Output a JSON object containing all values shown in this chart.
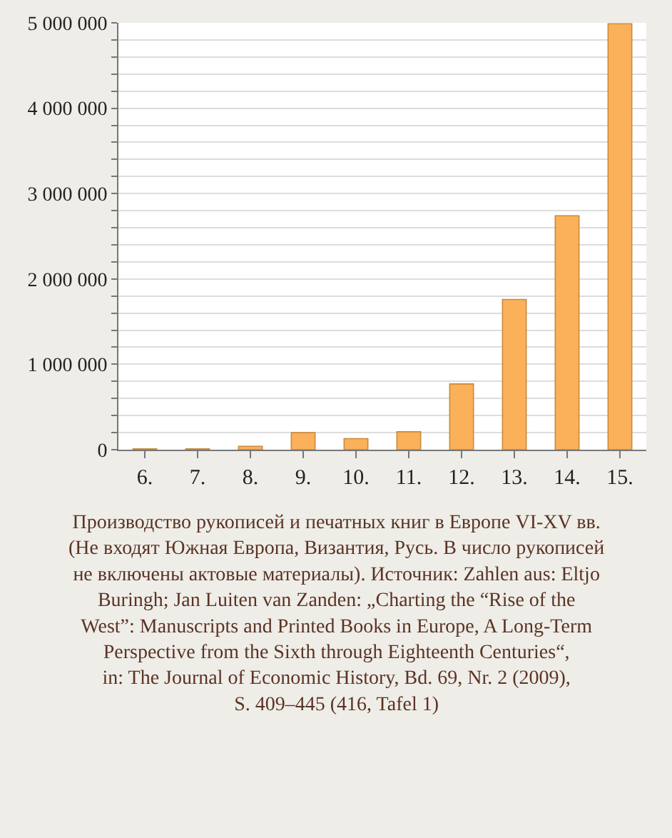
{
  "chart_data": {
    "type": "bar",
    "categories": [
      "6.",
      "7.",
      "8.",
      "9.",
      "10.",
      "11.",
      "12.",
      "13.",
      "14.",
      "15."
    ],
    "values": [
      10000,
      10000,
      40000,
      200000,
      130000,
      210000,
      770000,
      1760000,
      2740000,
      4990000
    ],
    "color": "#fbb05a",
    "ylim": [
      0,
      5000000
    ],
    "yticks": [
      {
        "value": 0,
        "label": "0"
      },
      {
        "value": 200000,
        "label": null
      },
      {
        "value": 400000,
        "label": null
      },
      {
        "value": 600000,
        "label": null
      },
      {
        "value": 800000,
        "label": null
      },
      {
        "value": 1000000,
        "label": "1 000 000"
      },
      {
        "value": 1200000,
        "label": null
      },
      {
        "value": 1400000,
        "label": null
      },
      {
        "value": 1600000,
        "label": null
      },
      {
        "value": 1800000,
        "label": null
      },
      {
        "value": 2000000,
        "label": "2 000 000"
      },
      {
        "value": 2200000,
        "label": null
      },
      {
        "value": 2400000,
        "label": null
      },
      {
        "value": 2600000,
        "label": null
      },
      {
        "value": 2800000,
        "label": null
      },
      {
        "value": 3000000,
        "label": "3 000 000"
      },
      {
        "value": 3200000,
        "label": null
      },
      {
        "value": 3400000,
        "label": null
      },
      {
        "value": 3600000,
        "label": null
      },
      {
        "value": 3800000,
        "label": null
      },
      {
        "value": 4000000,
        "label": "4 000 000"
      },
      {
        "value": 4200000,
        "label": null
      },
      {
        "value": 4400000,
        "label": null
      },
      {
        "value": 4600000,
        "label": null
      },
      {
        "value": 4800000,
        "label": null
      },
      {
        "value": 5000000,
        "label": "5 000 000"
      }
    ],
    "grid": "y",
    "annotations": [
      "Производство рукописей и печатных книг в Европе VI-XV вв. (Не входят Южная Европа, Византия, Русь. В число рукописей не включены актовые материалы). Источник: Zahlen aus: Eltjo Buringh; Jan Luiten van Zanden: „Charting the “Rise of the West”: Manuscripts and Printed Books in Europe, A Long-Term Perspective from the Sixth through Eighteenth Centuries“, in: The Journal of Economic History, Bd. 69, Nr. 2 (2009), S. 409–445 (416, Tafel 1)"
    ]
  }
}
